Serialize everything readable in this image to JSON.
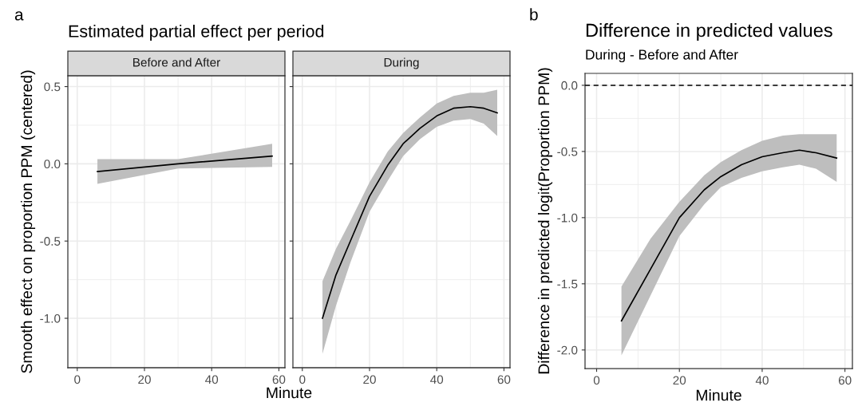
{
  "chart_data": [
    {
      "type": "line",
      "title": "Estimated partial effect per period",
      "subtitle": "Before and After",
      "xlabel": "Minute",
      "ylabel": "Smooth effect on proportion PPM (centered)",
      "annotations": [
        "a"
      ],
      "series": [
        {
          "color": "#000000",
          "x": [
            6,
            30,
            58
          ],
          "values": [
            -0.05,
            0.0,
            0.05
          ],
          "lower": [
            -0.13,
            -0.03,
            -0.02
          ],
          "upper": [
            0.03,
            0.03,
            0.13
          ]
        }
      ],
      "xlim": [
        -2.8,
        61.8
      ],
      "xticks": [
        0,
        20,
        40,
        60
      ],
      "ylim": [
        -1.32,
        0.57
      ],
      "yticks": [
        {
          "value": -1.0,
          "label": "-1.0"
        },
        {
          "value": -0.5,
          "label": "-0.5"
        },
        {
          "value": 0.0,
          "label": "0.0"
        },
        {
          "value": 0.5,
          "label": "0.5"
        }
      ],
      "grid": true
    },
    {
      "type": "line",
      "subtitle": "During",
      "series": [
        {
          "color": "#000000",
          "x": [
            6,
            10,
            14.3,
            20,
            25.4,
            30,
            35,
            40,
            45,
            50,
            54,
            58
          ],
          "values": [
            -1.0,
            -0.72,
            -0.5,
            -0.21,
            -0.01,
            0.13,
            0.23,
            0.31,
            0.36,
            0.37,
            0.36,
            0.33
          ],
          "lower": [
            -1.23,
            -0.92,
            -0.64,
            -0.31,
            -0.11,
            0.05,
            0.16,
            0.24,
            0.28,
            0.29,
            0.26,
            0.18
          ],
          "upper": [
            -0.76,
            -0.55,
            -0.37,
            -0.12,
            0.08,
            0.2,
            0.3,
            0.39,
            0.44,
            0.46,
            0.46,
            0.48
          ]
        }
      ],
      "xlim": [
        -2.8,
        61.8
      ],
      "xticks": [
        0,
        20,
        40,
        60
      ],
      "ylim": [
        -1.32,
        0.57
      ],
      "yticks": [
        {
          "value": -1.0,
          "label": null
        },
        {
          "value": -0.5,
          "label": null
        },
        {
          "value": 0.0,
          "label": null
        },
        {
          "value": 0.5,
          "label": null
        }
      ],
      "tick_labels": "x",
      "grid": true
    },
    {
      "type": "line",
      "title": "Difference in predicted values",
      "subtitle": "During - Before and After",
      "xlabel": "Minute",
      "ylabel": "Difference in predicted logit(Proportion PPM)",
      "annotations": [
        "b"
      ],
      "series": [
        {
          "color": "#000000",
          "x": [
            6,
            13,
            20,
            26,
            30,
            35,
            40,
            45,
            49,
            53,
            58
          ],
          "values": [
            -1.78,
            -1.39,
            -1.0,
            -0.79,
            -0.69,
            -0.6,
            -0.54,
            -0.51,
            -0.49,
            -0.51,
            -0.55
          ],
          "lower": [
            -2.04,
            -1.59,
            -1.14,
            -0.9,
            -0.77,
            -0.7,
            -0.65,
            -0.62,
            -0.6,
            -0.63,
            -0.73
          ],
          "upper": [
            -1.52,
            -1.16,
            -0.88,
            -0.68,
            -0.58,
            -0.49,
            -0.42,
            -0.38,
            -0.37,
            -0.37,
            -0.37
          ]
        }
      ],
      "ref_lines": [
        {
          "axis": "y",
          "value": 0,
          "color": "#000000",
          "line_style": "dashed"
        }
      ],
      "xlim": [
        -2.8,
        61.8
      ],
      "xticks": [
        0,
        20,
        40,
        60
      ],
      "ylim": [
        -2.14,
        0.09
      ],
      "yticks": [
        {
          "value": -2.0,
          "label": "-2.0"
        },
        {
          "value": -1.5,
          "label": "-1.5"
        },
        {
          "value": -1.0,
          "label": "-1.0"
        },
        {
          "value": -0.5,
          "label": "-0.5"
        },
        {
          "value": 0.0,
          "label": "0.0"
        }
      ],
      "grid": true
    }
  ]
}
